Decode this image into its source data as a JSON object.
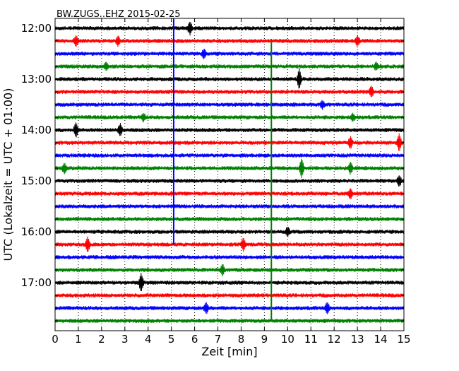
{
  "chart_data": {
    "type": "line",
    "title": "BW.ZUGS..EHZ 2015-02-25",
    "xlabel": "Zeit  [min]",
    "ylabel": "UTC (Lokalzeit = UTC + 01:00)",
    "xlim": [
      0,
      15
    ],
    "x_ticks": [
      "0",
      "1",
      "2",
      "3",
      "4",
      "5",
      "6",
      "7",
      "8",
      "9",
      "10",
      "11",
      "12",
      "13",
      "14",
      "15"
    ],
    "y_tick_labels": [
      "12:00",
      "13:00",
      "14:00",
      "15:00",
      "16:00",
      "17:00"
    ],
    "row_interval_minutes": 15,
    "first_row_time": "12:00",
    "trace_count": 24,
    "trace_colors": [
      "#000000",
      "#ff0000",
      "#0000ff",
      "#008000"
    ],
    "grid": "vertical dotted lines at each minute",
    "markers": [
      {
        "color": "#0000ff",
        "x": 5.1,
        "from_row": 0,
        "to_row": 17
      },
      {
        "color": "#008000",
        "x": 9.3,
        "from_row": 1,
        "to_row": 23
      }
    ],
    "events": [
      {
        "row": 0,
        "x": 5.8,
        "amp": 1.0
      },
      {
        "row": 1,
        "x": 0.9,
        "amp": 0.8
      },
      {
        "row": 1,
        "x": 2.7,
        "amp": 0.8
      },
      {
        "row": 1,
        "x": 13.0,
        "amp": 0.8
      },
      {
        "row": 2,
        "x": 6.4,
        "amp": 0.7
      },
      {
        "row": 3,
        "x": 2.2,
        "amp": 0.6
      },
      {
        "row": 3,
        "x": 13.8,
        "amp": 0.6
      },
      {
        "row": 4,
        "x": 10.5,
        "amp": 1.6
      },
      {
        "row": 5,
        "x": 13.6,
        "amp": 0.9
      },
      {
        "row": 6,
        "x": 11.5,
        "amp": 0.6
      },
      {
        "row": 7,
        "x": 3.8,
        "amp": 0.6
      },
      {
        "row": 7,
        "x": 12.8,
        "amp": 0.6
      },
      {
        "row": 8,
        "x": 0.9,
        "amp": 1.2
      },
      {
        "row": 8,
        "x": 2.8,
        "amp": 1.0
      },
      {
        "row": 9,
        "x": 12.7,
        "amp": 0.9
      },
      {
        "row": 9,
        "x": 14.8,
        "amp": 1.4
      },
      {
        "row": 11,
        "x": 0.4,
        "amp": 0.8
      },
      {
        "row": 11,
        "x": 10.6,
        "amp": 1.5
      },
      {
        "row": 11,
        "x": 12.7,
        "amp": 0.9
      },
      {
        "row": 12,
        "x": 14.8,
        "amp": 0.8
      },
      {
        "row": 13,
        "x": 12.7,
        "amp": 0.8
      },
      {
        "row": 16,
        "x": 10.0,
        "amp": 0.7
      },
      {
        "row": 17,
        "x": 1.4,
        "amp": 1.2
      },
      {
        "row": 17,
        "x": 8.1,
        "amp": 1.0
      },
      {
        "row": 19,
        "x": 7.2,
        "amp": 0.9
      },
      {
        "row": 20,
        "x": 3.7,
        "amp": 1.5
      },
      {
        "row": 22,
        "x": 6.5,
        "amp": 0.9
      },
      {
        "row": 22,
        "x": 11.7,
        "amp": 0.9
      }
    ]
  }
}
